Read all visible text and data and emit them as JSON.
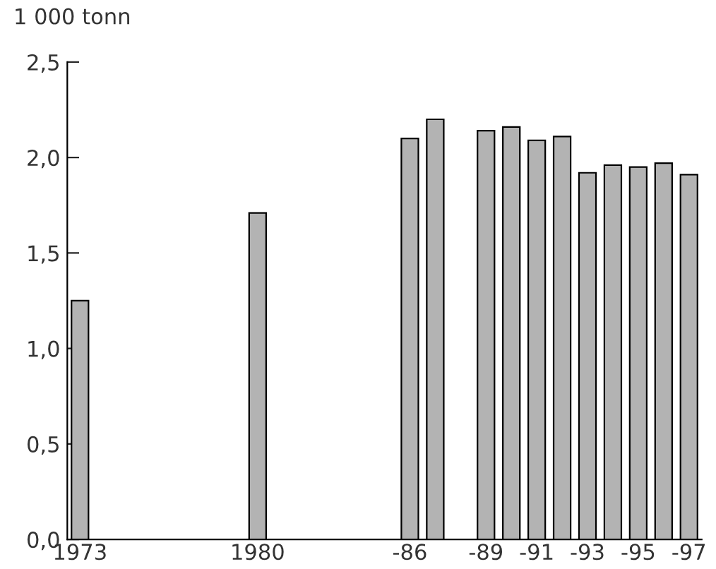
{
  "chart_data": {
    "type": "bar",
    "ylabel": "1 000 tonn",
    "categories": [
      "1973",
      null,
      null,
      null,
      null,
      null,
      null,
      "1980",
      null,
      null,
      null,
      null,
      null,
      "-86",
      null,
      null,
      "-89",
      null,
      "-91",
      null,
      "-93",
      null,
      "-95",
      null,
      "-97"
    ],
    "values": [
      1.25,
      null,
      null,
      null,
      null,
      null,
      null,
      1.71,
      null,
      null,
      null,
      null,
      null,
      2.1,
      2.2,
      null,
      2.14,
      2.16,
      2.09,
      2.11,
      1.92,
      1.96,
      1.95,
      1.97,
      1.91
    ],
    "color": "#b3b3b3",
    "ylim": [
      0,
      2.5
    ],
    "yticks": [
      {
        "value": 0,
        "label": "0,0"
      },
      {
        "value": 0.5,
        "label": "0,5"
      },
      {
        "value": 1,
        "label": "1,0"
      },
      {
        "value": 1.5,
        "label": "1,5"
      },
      {
        "value": 2,
        "label": "2,0"
      },
      {
        "value": 2.5,
        "label": "2,5"
      }
    ],
    "grid": false,
    "legend": false
  }
}
